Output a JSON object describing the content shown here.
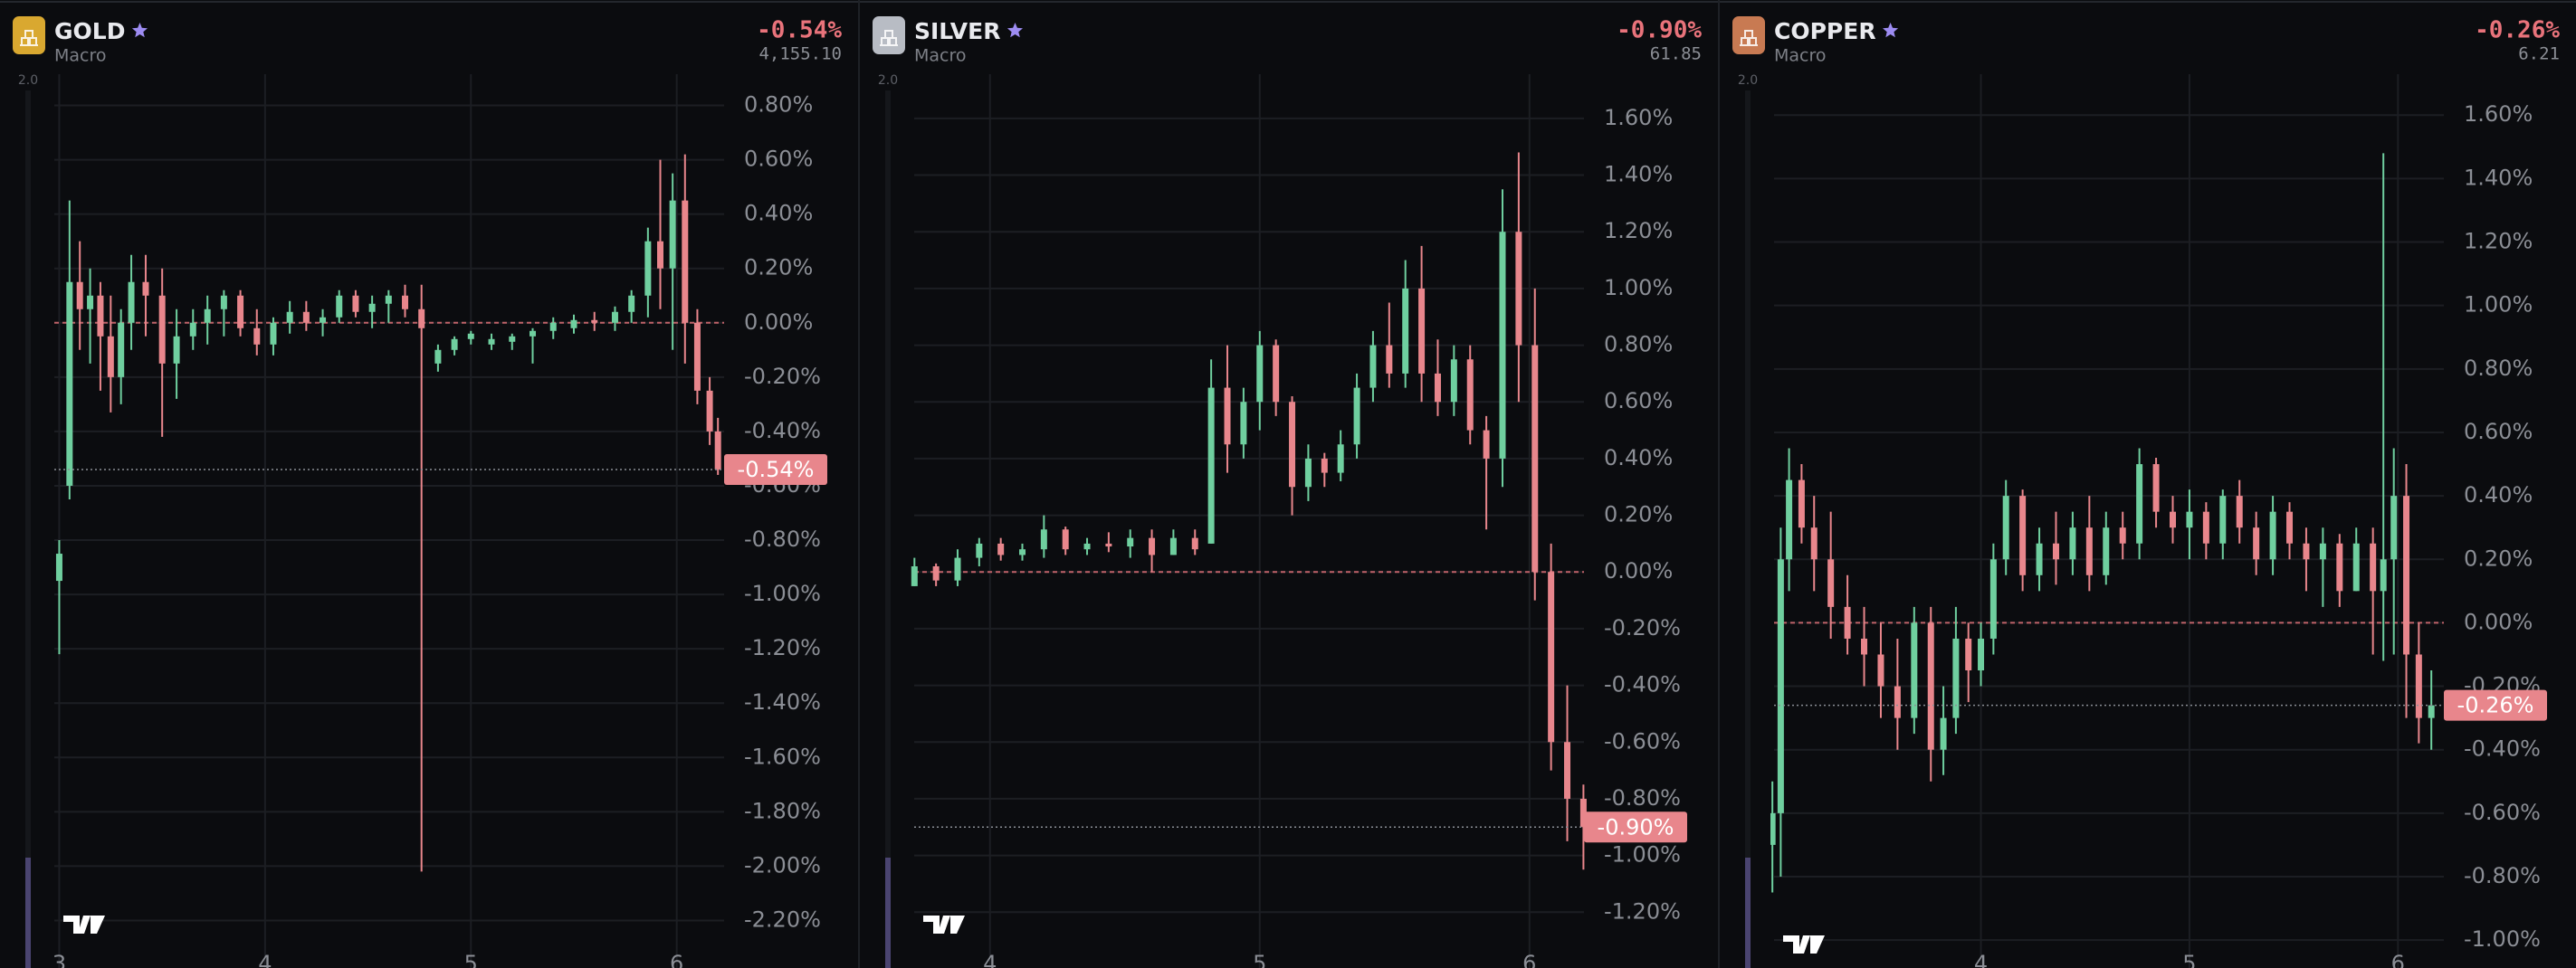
{
  "chart_data": [
    {
      "type": "candlestick",
      "title": "GOLD",
      "subtitle": "Macro",
      "price": "4,155.10",
      "side_label": "2.0",
      "icon_color": "#d9a830",
      "up_color": "#6fcf9f",
      "down_color": "#e8868c",
      "baseline": 0,
      "last_value": {
        "value": -0.54,
        "label": "-0.54%"
      },
      "xlim": [
        2.976,
        6.23
      ],
      "xticks": [
        3,
        4,
        5,
        6
      ],
      "ylim": [
        -2.375,
        0.915
      ],
      "yticks": [
        {
          "value": 0.8,
          "label": "0.80%"
        },
        {
          "value": 0.6,
          "label": "0.60%"
        },
        {
          "value": 0.4,
          "label": "0.40%"
        },
        {
          "value": 0.2,
          "label": "0.20%"
        },
        {
          "value": 0,
          "label": "0.00%"
        },
        {
          "value": -0.2,
          "label": "-0.20%"
        },
        {
          "value": -0.4,
          "label": "-0.40%"
        },
        {
          "value": -0.6,
          "label": "-0.60%"
        },
        {
          "value": -0.8,
          "label": "-0.80%"
        },
        {
          "value": -1.0,
          "label": "-1.00%"
        },
        {
          "value": -1.2,
          "label": "-1.20%"
        },
        {
          "value": -1.4,
          "label": "-1.40%"
        },
        {
          "value": -1.6,
          "label": "-1.60%"
        },
        {
          "value": -1.8,
          "label": "-1.80%"
        },
        {
          "value": -2.0,
          "label": "-2.00%"
        },
        {
          "value": -2.2,
          "label": "-2.20%"
        }
      ],
      "x": [
        3.0,
        3.05,
        3.1,
        3.15,
        3.2,
        3.25,
        3.3,
        3.35,
        3.42,
        3.5,
        3.57,
        3.65,
        3.72,
        3.8,
        3.88,
        3.96,
        4.04,
        4.12,
        4.2,
        4.28,
        4.36,
        4.44,
        4.52,
        4.6,
        4.68,
        4.76,
        4.84,
        4.92,
        5.0,
        5.1,
        5.2,
        5.3,
        5.4,
        5.5,
        5.6,
        5.7,
        5.78,
        5.86,
        5.92,
        5.98,
        6.04,
        6.1,
        6.16,
        6.2
      ],
      "open": [
        -0.95,
        -0.6,
        0.15,
        0.05,
        0.1,
        -0.05,
        -0.2,
        0.0,
        0.15,
        0.1,
        -0.15,
        -0.05,
        0.0,
        0.05,
        0.1,
        -0.02,
        -0.08,
        0.0,
        0.04,
        0.0,
        0.02,
        0.1,
        0.04,
        0.07,
        0.1,
        0.05,
        -0.15,
        -0.1,
        -0.06,
        -0.08,
        -0.07,
        -0.05,
        -0.03,
        -0.02,
        0.01,
        0.0,
        0.04,
        0.1,
        0.3,
        0.2,
        0.45,
        0.0,
        -0.25,
        -0.4
      ],
      "high": [
        -0.8,
        0.45,
        0.3,
        0.2,
        0.15,
        0.1,
        0.05,
        0.25,
        0.25,
        0.2,
        0.05,
        0.05,
        0.1,
        0.12,
        0.12,
        0.05,
        0.02,
        0.08,
        0.08,
        0.05,
        0.12,
        0.12,
        0.1,
        0.12,
        0.14,
        0.14,
        -0.08,
        -0.05,
        -0.03,
        -0.04,
        -0.04,
        -0.02,
        0.02,
        0.03,
        0.04,
        0.06,
        0.12,
        0.35,
        0.6,
        0.55,
        0.62,
        0.05,
        -0.2,
        -0.35
      ],
      "low": [
        -1.22,
        -0.65,
        -0.1,
        -0.15,
        -0.25,
        -0.33,
        -0.3,
        -0.1,
        -0.05,
        -0.42,
        -0.28,
        -0.1,
        -0.08,
        -0.05,
        -0.05,
        -0.12,
        -0.12,
        -0.04,
        -0.03,
        -0.05,
        0.0,
        0.02,
        -0.02,
        0.0,
        0.02,
        -2.02,
        -0.18,
        -0.12,
        -0.08,
        -0.1,
        -0.1,
        -0.15,
        -0.06,
        -0.04,
        -0.03,
        -0.03,
        0.0,
        0.02,
        0.05,
        -0.1,
        -0.15,
        -0.3,
        -0.45,
        -0.56
      ],
      "close": [
        -0.85,
        0.15,
        0.05,
        0.1,
        -0.05,
        -0.2,
        0.0,
        0.15,
        0.1,
        -0.15,
        -0.05,
        0.0,
        0.05,
        0.1,
        -0.02,
        -0.08,
        0.0,
        0.04,
        0.0,
        0.02,
        0.1,
        0.04,
        0.07,
        0.1,
        0.05,
        -0.02,
        -0.1,
        -0.06,
        -0.04,
        -0.06,
        -0.05,
        -0.03,
        0.0,
        0.01,
        0.0,
        0.04,
        0.1,
        0.3,
        0.2,
        0.45,
        0.0,
        -0.25,
        -0.4,
        -0.54
      ]
    },
    {
      "type": "candlestick",
      "title": "SILVER",
      "subtitle": "Macro",
      "price": "61.85",
      "side_label": "2.0",
      "icon_color": "#b8bcc4",
      "up_color": "#6fcf9f",
      "down_color": "#e8868c",
      "baseline": 0,
      "last_value": {
        "value": -0.9,
        "label": "-0.90%"
      },
      "xlim": [
        3.719,
        6.202
      ],
      "xticks": [
        4,
        5,
        6
      ],
      "ylim": [
        -1.397,
        1.756
      ],
      "yticks": [
        {
          "value": 1.6,
          "label": "1.60%"
        },
        {
          "value": 1.4,
          "label": "1.40%"
        },
        {
          "value": 1.2,
          "label": "1.20%"
        },
        {
          "value": 1.0,
          "label": "1.00%"
        },
        {
          "value": 0.8,
          "label": "0.80%"
        },
        {
          "value": 0.6,
          "label": "0.60%"
        },
        {
          "value": 0.4,
          "label": "0.40%"
        },
        {
          "value": 0.2,
          "label": "0.20%"
        },
        {
          "value": 0,
          "label": "0.00%"
        },
        {
          "value": -0.2,
          "label": "-0.20%"
        },
        {
          "value": -0.4,
          "label": "-0.40%"
        },
        {
          "value": -0.6,
          "label": "-0.60%"
        },
        {
          "value": -0.8,
          "label": "-0.80%"
        },
        {
          "value": -1.0,
          "label": "-1.00%"
        },
        {
          "value": -1.2,
          "label": "-1.20%"
        }
      ],
      "x": [
        3.72,
        3.8,
        3.88,
        3.96,
        4.04,
        4.12,
        4.2,
        4.28,
        4.36,
        4.44,
        4.52,
        4.6,
        4.68,
        4.76,
        4.82,
        4.88,
        4.94,
        5.0,
        5.06,
        5.12,
        5.18,
        5.24,
        5.3,
        5.36,
        5.42,
        5.48,
        5.54,
        5.6,
        5.66,
        5.72,
        5.78,
        5.84,
        5.9,
        5.96,
        6.02,
        6.08,
        6.14,
        6.2
      ],
      "open": [
        -0.05,
        0.02,
        -0.03,
        0.05,
        0.1,
        0.06,
        0.08,
        0.15,
        0.08,
        0.1,
        0.09,
        0.12,
        0.06,
        0.12,
        0.1,
        0.65,
        0.45,
        0.6,
        0.8,
        0.6,
        0.3,
        0.4,
        0.35,
        0.45,
        0.65,
        0.8,
        0.7,
        1.0,
        0.7,
        0.6,
        0.75,
        0.5,
        0.4,
        1.2,
        0.8,
        0.0,
        -0.6,
        -0.8
      ],
      "high": [
        0.05,
        0.03,
        0.08,
        0.12,
        0.12,
        0.1,
        0.2,
        0.16,
        0.12,
        0.14,
        0.15,
        0.15,
        0.15,
        0.15,
        0.75,
        0.8,
        0.65,
        0.85,
        0.82,
        0.62,
        0.45,
        0.42,
        0.5,
        0.7,
        0.85,
        0.95,
        1.1,
        1.15,
        0.82,
        0.8,
        0.8,
        0.55,
        1.35,
        1.48,
        1.0,
        0.1,
        -0.4,
        -0.75
      ],
      "low": [
        -0.05,
        -0.05,
        -0.05,
        0.02,
        0.04,
        0.04,
        0.05,
        0.06,
        0.06,
        0.07,
        0.05,
        0.0,
        0.06,
        0.06,
        0.1,
        0.35,
        0.4,
        0.5,
        0.55,
        0.2,
        0.25,
        0.3,
        0.32,
        0.4,
        0.6,
        0.65,
        0.65,
        0.6,
        0.55,
        0.55,
        0.45,
        0.15,
        0.3,
        0.6,
        -0.1,
        -0.7,
        -0.95,
        -1.05
      ],
      "close": [
        0.02,
        -0.03,
        0.05,
        0.1,
        0.06,
        0.08,
        0.15,
        0.08,
        0.1,
        0.09,
        0.12,
        0.06,
        0.12,
        0.08,
        0.65,
        0.45,
        0.6,
        0.8,
        0.6,
        0.3,
        0.4,
        0.35,
        0.45,
        0.65,
        0.8,
        0.7,
        1.0,
        0.7,
        0.6,
        0.75,
        0.5,
        0.4,
        1.2,
        0.8,
        0.0,
        -0.6,
        -0.8,
        -0.9
      ]
    },
    {
      "type": "candlestick",
      "title": "COPPER",
      "subtitle": "Macro",
      "price": "6.21",
      "side_label": "2.0",
      "icon_color": "#c87a52",
      "up_color": "#6fcf9f",
      "down_color": "#e8868c",
      "baseline": 0,
      "last_value": {
        "value": -0.26,
        "label": "-0.26%"
      },
      "xlim": [
        3.008,
        6.22
      ],
      "xticks": [
        4,
        5,
        6
      ],
      "ylim": [
        -1.088,
        1.729
      ],
      "yticks": [
        {
          "value": 1.6,
          "label": "1.60%"
        },
        {
          "value": 1.4,
          "label": "1.40%"
        },
        {
          "value": 1.2,
          "label": "1.20%"
        },
        {
          "value": 1.0,
          "label": "1.00%"
        },
        {
          "value": 0.8,
          "label": "0.80%"
        },
        {
          "value": 0.6,
          "label": "0.60%"
        },
        {
          "value": 0.4,
          "label": "0.40%"
        },
        {
          "value": 0.2,
          "label": "0.20%"
        },
        {
          "value": 0,
          "label": "0.00%"
        },
        {
          "value": -0.2,
          "label": "-0.20%"
        },
        {
          "value": -0.4,
          "label": "-0.40%"
        },
        {
          "value": -0.6,
          "label": "-0.60%"
        },
        {
          "value": -0.8,
          "label": "-0.80%"
        },
        {
          "value": -1.0,
          "label": "-1.00%"
        }
      ],
      "x": [
        3.0,
        3.04,
        3.08,
        3.14,
        3.2,
        3.28,
        3.36,
        3.44,
        3.52,
        3.6,
        3.68,
        3.76,
        3.82,
        3.88,
        3.94,
        4.0,
        4.06,
        4.12,
        4.2,
        4.28,
        4.36,
        4.44,
        4.52,
        4.6,
        4.68,
        4.76,
        4.84,
        4.92,
        5.0,
        5.08,
        5.16,
        5.24,
        5.32,
        5.4,
        5.48,
        5.56,
        5.64,
        5.72,
        5.8,
        5.88,
        5.93,
        5.98,
        6.04,
        6.1,
        6.16
      ],
      "open": [
        -0.7,
        -0.6,
        0.2,
        0.45,
        0.3,
        0.2,
        0.05,
        -0.05,
        -0.1,
        -0.2,
        -0.3,
        0.0,
        -0.4,
        -0.3,
        -0.05,
        -0.15,
        -0.05,
        0.2,
        0.4,
        0.15,
        0.25,
        0.2,
        0.3,
        0.15,
        0.3,
        0.25,
        0.5,
        0.35,
        0.3,
        0.35,
        0.25,
        0.4,
        0.3,
        0.2,
        0.35,
        0.25,
        0.2,
        0.25,
        0.1,
        0.25,
        0.1,
        0.2,
        0.4,
        -0.1,
        -0.3
      ],
      "high": [
        -0.5,
        0.3,
        0.55,
        0.5,
        0.4,
        0.35,
        0.15,
        0.05,
        0.0,
        -0.05,
        0.05,
        0.05,
        -0.2,
        0.05,
        0.0,
        0.0,
        0.25,
        0.45,
        0.42,
        0.3,
        0.35,
        0.35,
        0.4,
        0.35,
        0.35,
        0.55,
        0.52,
        0.4,
        0.42,
        0.38,
        0.42,
        0.45,
        0.35,
        0.4,
        0.38,
        0.3,
        0.3,
        0.28,
        0.3,
        0.3,
        1.48,
        0.55,
        0.5,
        0.0,
        -0.15
      ],
      "low": [
        -0.85,
        -0.8,
        0.1,
        0.25,
        0.1,
        -0.05,
        -0.1,
        -0.2,
        -0.3,
        -0.4,
        -0.35,
        -0.5,
        -0.48,
        -0.35,
        -0.25,
        -0.2,
        -0.1,
        0.15,
        0.1,
        0.1,
        0.12,
        0.15,
        0.1,
        0.12,
        0.2,
        0.2,
        0.3,
        0.25,
        0.2,
        0.2,
        0.2,
        0.25,
        0.15,
        0.15,
        0.2,
        0.1,
        0.05,
        0.05,
        0.1,
        -0.1,
        -0.12,
        -0.1,
        -0.3,
        -0.38,
        -0.4
      ],
      "close": [
        -0.6,
        0.2,
        0.45,
        0.3,
        0.2,
        0.05,
        -0.05,
        -0.1,
        -0.2,
        -0.3,
        0.0,
        -0.4,
        -0.3,
        -0.05,
        -0.15,
        -0.05,
        0.2,
        0.4,
        0.15,
        0.25,
        0.2,
        0.3,
        0.15,
        0.3,
        0.25,
        0.5,
        0.35,
        0.3,
        0.35,
        0.25,
        0.4,
        0.3,
        0.2,
        0.35,
        0.25,
        0.2,
        0.25,
        0.1,
        0.25,
        0.1,
        0.2,
        0.4,
        -0.1,
        -0.3,
        -0.26
      ]
    }
  ]
}
